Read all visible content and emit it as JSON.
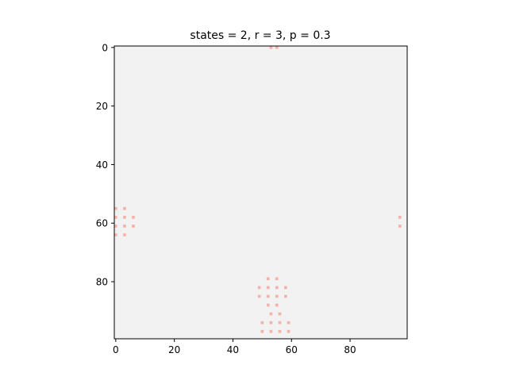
{
  "chart_data": {
    "type": "heatmap",
    "title": "states = 2, r = 3, p = 0.3",
    "xlabel": "",
    "ylabel": "",
    "grid_size": [
      100,
      100
    ],
    "xlim": [
      -0.5,
      99.5
    ],
    "ylim": [
      99.5,
      -0.5
    ],
    "x_ticks": [
      0,
      20,
      40,
      60,
      80
    ],
    "y_ticks": [
      0,
      20,
      40,
      60,
      80
    ],
    "background_color": "#f2f2f2",
    "cell_color": "#f4b3aa",
    "axes_color": "#000000",
    "active_cells": [
      [
        53,
        0
      ],
      [
        55,
        0
      ],
      [
        0,
        55
      ],
      [
        3,
        55
      ],
      [
        0,
        58
      ],
      [
        3,
        58
      ],
      [
        6,
        58
      ],
      [
        0,
        61
      ],
      [
        3,
        61
      ],
      [
        6,
        61
      ],
      [
        0,
        64
      ],
      [
        3,
        64
      ],
      [
        97,
        58
      ],
      [
        97,
        61
      ],
      [
        52,
        79
      ],
      [
        55,
        79
      ],
      [
        49,
        82
      ],
      [
        52,
        82
      ],
      [
        55,
        82
      ],
      [
        58,
        82
      ],
      [
        49,
        85
      ],
      [
        52,
        85
      ],
      [
        55,
        85
      ],
      [
        58,
        85
      ],
      [
        52,
        88
      ],
      [
        55,
        88
      ],
      [
        53,
        91
      ],
      [
        56,
        91
      ],
      [
        50,
        94
      ],
      [
        53,
        94
      ],
      [
        56,
        94
      ],
      [
        59,
        94
      ],
      [
        50,
        97
      ],
      [
        53,
        97
      ],
      [
        56,
        97
      ],
      [
        59,
        97
      ]
    ]
  }
}
